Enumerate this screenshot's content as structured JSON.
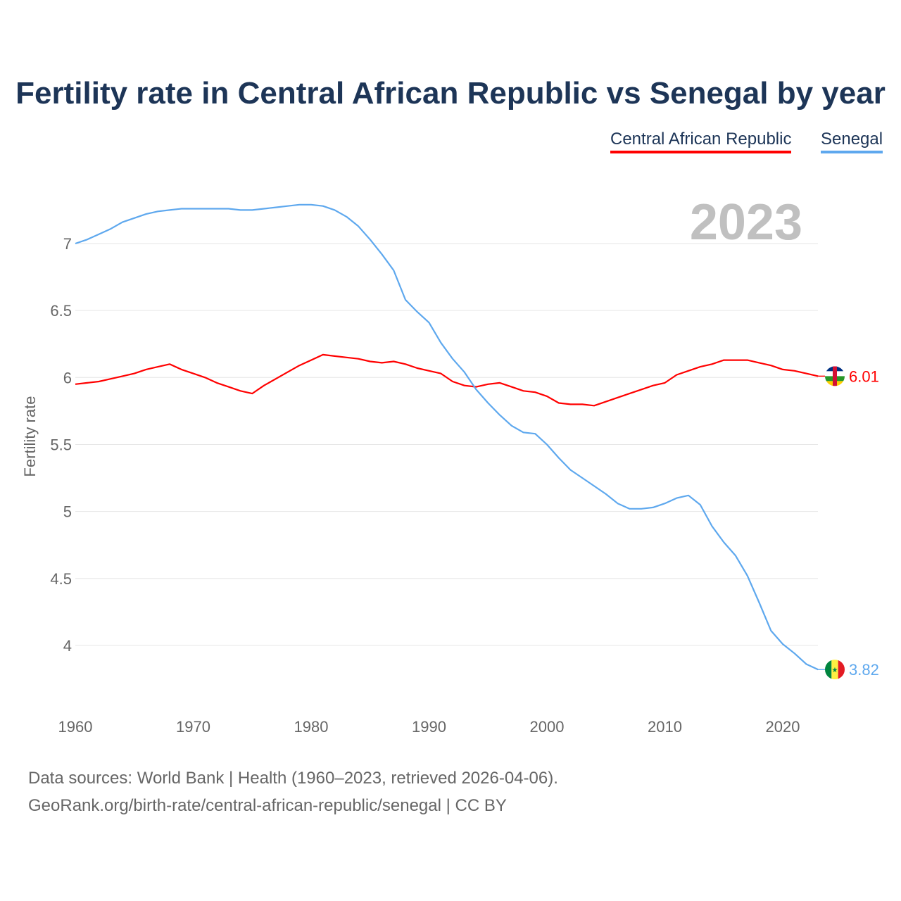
{
  "chart_data": {
    "type": "line",
    "title": "Fertility rate in Central African Republic vs Senegal by year",
    "xlabel": "",
    "ylabel": "Fertility rate",
    "xlim": [
      1960,
      2023
    ],
    "ylim": [
      3.65,
      7.4
    ],
    "grid": true,
    "legend_placement": "top-right",
    "year_watermark": "2023",
    "x_ticks": [
      1960,
      1970,
      1980,
      1990,
      2000,
      2010,
      2020
    ],
    "y_ticks": [
      4,
      4.5,
      5,
      5.5,
      6,
      6.5,
      7
    ],
    "x": [
      1960,
      1961,
      1962,
      1963,
      1964,
      1965,
      1966,
      1967,
      1968,
      1969,
      1970,
      1971,
      1972,
      1973,
      1974,
      1975,
      1976,
      1977,
      1978,
      1979,
      1980,
      1981,
      1982,
      1983,
      1984,
      1985,
      1986,
      1987,
      1988,
      1989,
      1990,
      1991,
      1992,
      1993,
      1994,
      1995,
      1996,
      1997,
      1998,
      1999,
      2000,
      2001,
      2002,
      2003,
      2004,
      2005,
      2006,
      2007,
      2008,
      2009,
      2010,
      2011,
      2012,
      2013,
      2014,
      2015,
      2016,
      2017,
      2018,
      2019,
      2020,
      2021,
      2022,
      2023
    ],
    "series": [
      {
        "name": "Central African Republic",
        "color": "#ff0000",
        "end_label": "6.01",
        "flag": "central-african-republic",
        "values": [
          5.95,
          5.96,
          5.97,
          5.99,
          6.01,
          6.03,
          6.06,
          6.08,
          6.1,
          6.06,
          6.03,
          6.0,
          5.96,
          5.93,
          5.9,
          5.88,
          5.94,
          5.99,
          6.04,
          6.09,
          6.13,
          6.17,
          6.16,
          6.15,
          6.14,
          6.12,
          6.11,
          6.12,
          6.1,
          6.07,
          6.05,
          6.03,
          5.97,
          5.94,
          5.93,
          5.95,
          5.96,
          5.93,
          5.9,
          5.89,
          5.86,
          5.81,
          5.8,
          5.8,
          5.79,
          5.82,
          5.85,
          5.88,
          5.91,
          5.94,
          5.96,
          6.02,
          6.05,
          6.08,
          6.1,
          6.13,
          6.13,
          6.13,
          6.11,
          6.09,
          6.06,
          6.05,
          6.03,
          6.01
        ]
      },
      {
        "name": "Senegal",
        "color": "#5ea8ee",
        "end_label": "3.82",
        "flag": "senegal",
        "values": [
          7.0,
          7.03,
          7.07,
          7.11,
          7.16,
          7.19,
          7.22,
          7.24,
          7.25,
          7.26,
          7.26,
          7.26,
          7.26,
          7.26,
          7.25,
          7.25,
          7.26,
          7.27,
          7.28,
          7.29,
          7.29,
          7.28,
          7.25,
          7.2,
          7.13,
          7.03,
          6.92,
          6.8,
          6.58,
          6.49,
          6.41,
          6.26,
          6.14,
          6.04,
          5.91,
          5.81,
          5.72,
          5.64,
          5.59,
          5.58,
          5.5,
          5.4,
          5.31,
          5.25,
          5.19,
          5.13,
          5.06,
          5.02,
          5.02,
          5.03,
          5.06,
          5.1,
          5.12,
          5.05,
          4.89,
          4.77,
          4.67,
          4.52,
          4.32,
          4.11,
          4.01,
          3.94,
          3.86,
          3.82
        ]
      }
    ]
  },
  "footer": {
    "line1": "Data sources: World Bank | Health (1960–2023, retrieved 2026-04-06).",
    "line2": "GeoRank.org/birth-rate/central-african-republic/senegal | CC BY"
  }
}
